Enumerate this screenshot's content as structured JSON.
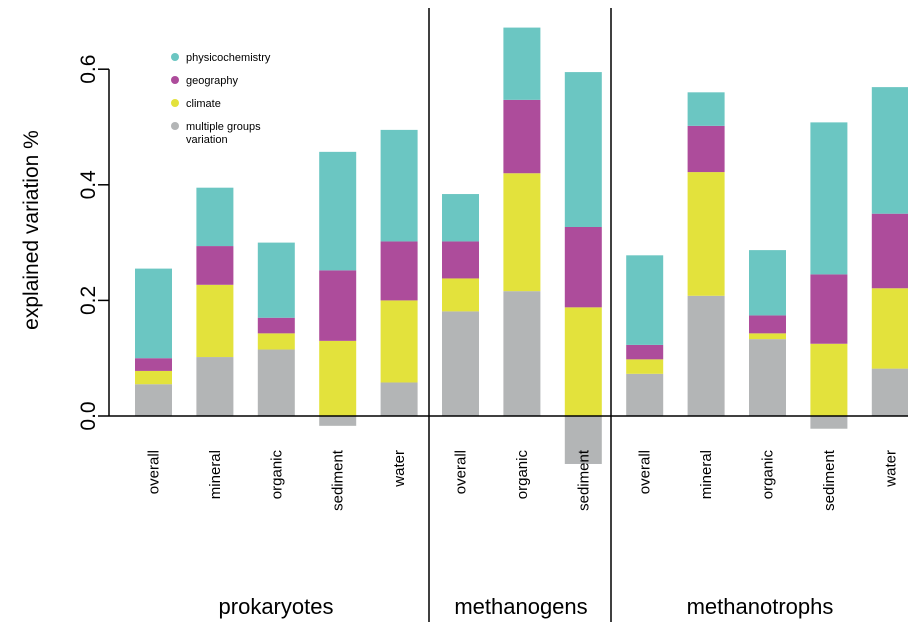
{
  "chart_data": {
    "type": "bar",
    "stacked": true,
    "ylabel": "explained variation %",
    "ylim": [
      -0.09,
      0.72
    ],
    "yticks": [
      0.0,
      0.2,
      0.4,
      0.6
    ],
    "ytick_labels": [
      "0.0",
      "0.2",
      "0.4",
      "0.6"
    ],
    "legend": {
      "position": "top-left",
      "items": [
        {
          "key": "physicochemistry",
          "label": "physicochemistry",
          "color": "#6BC6C2"
        },
        {
          "key": "geography",
          "label": "geography",
          "color": "#AD4C9B"
        },
        {
          "key": "climate",
          "label": "climate",
          "color": "#E3E23C"
        },
        {
          "key": "multiple",
          "label": "multiple groups variation",
          "label_lines": [
            "multiple groups",
            "variation"
          ],
          "color": "#B3B5B6"
        }
      ]
    },
    "groups": [
      {
        "name": "prokaryotes",
        "bars": [
          {
            "category": "overall",
            "multiple": 0.055,
            "climate": 0.023,
            "geography": 0.022,
            "physicochemistry": 0.155
          },
          {
            "category": "mineral",
            "multiple": 0.102,
            "climate": 0.125,
            "geography": 0.067,
            "physicochemistry": 0.101
          },
          {
            "category": "organic",
            "multiple": 0.115,
            "climate": 0.028,
            "geography": 0.027,
            "physicochemistry": 0.13
          },
          {
            "category": "sediment",
            "multiple": -0.017,
            "climate": 0.13,
            "geography": 0.122,
            "physicochemistry": 0.205
          },
          {
            "category": "water",
            "multiple": 0.058,
            "climate": 0.142,
            "geography": 0.102,
            "physicochemistry": 0.193
          }
        ]
      },
      {
        "name": "methanogens",
        "bars": [
          {
            "category": "overall",
            "multiple": 0.181,
            "climate": 0.057,
            "geography": 0.064,
            "physicochemistry": 0.082
          },
          {
            "category": "organic",
            "multiple": 0.216,
            "climate": 0.204,
            "geography": 0.127,
            "physicochemistry": 0.125
          },
          {
            "category": "sediment",
            "multiple": -0.083,
            "climate": 0.188,
            "geography": 0.139,
            "physicochemistry": 0.268
          }
        ]
      },
      {
        "name": "methanotrophs",
        "bars": [
          {
            "category": "overall",
            "multiple": 0.073,
            "climate": 0.025,
            "geography": 0.025,
            "physicochemistry": 0.155
          },
          {
            "category": "mineral",
            "multiple": 0.208,
            "climate": 0.214,
            "geography": 0.08,
            "physicochemistry": 0.058
          },
          {
            "category": "organic",
            "multiple": 0.133,
            "climate": 0.01,
            "geography": 0.031,
            "physicochemistry": 0.113
          },
          {
            "category": "sediment",
            "multiple": -0.022,
            "climate": 0.125,
            "geography": 0.12,
            "physicochemistry": 0.263
          },
          {
            "category": "water",
            "multiple": 0.082,
            "climate": 0.139,
            "geography": 0.129,
            "physicochemistry": 0.219
          }
        ]
      }
    ]
  }
}
